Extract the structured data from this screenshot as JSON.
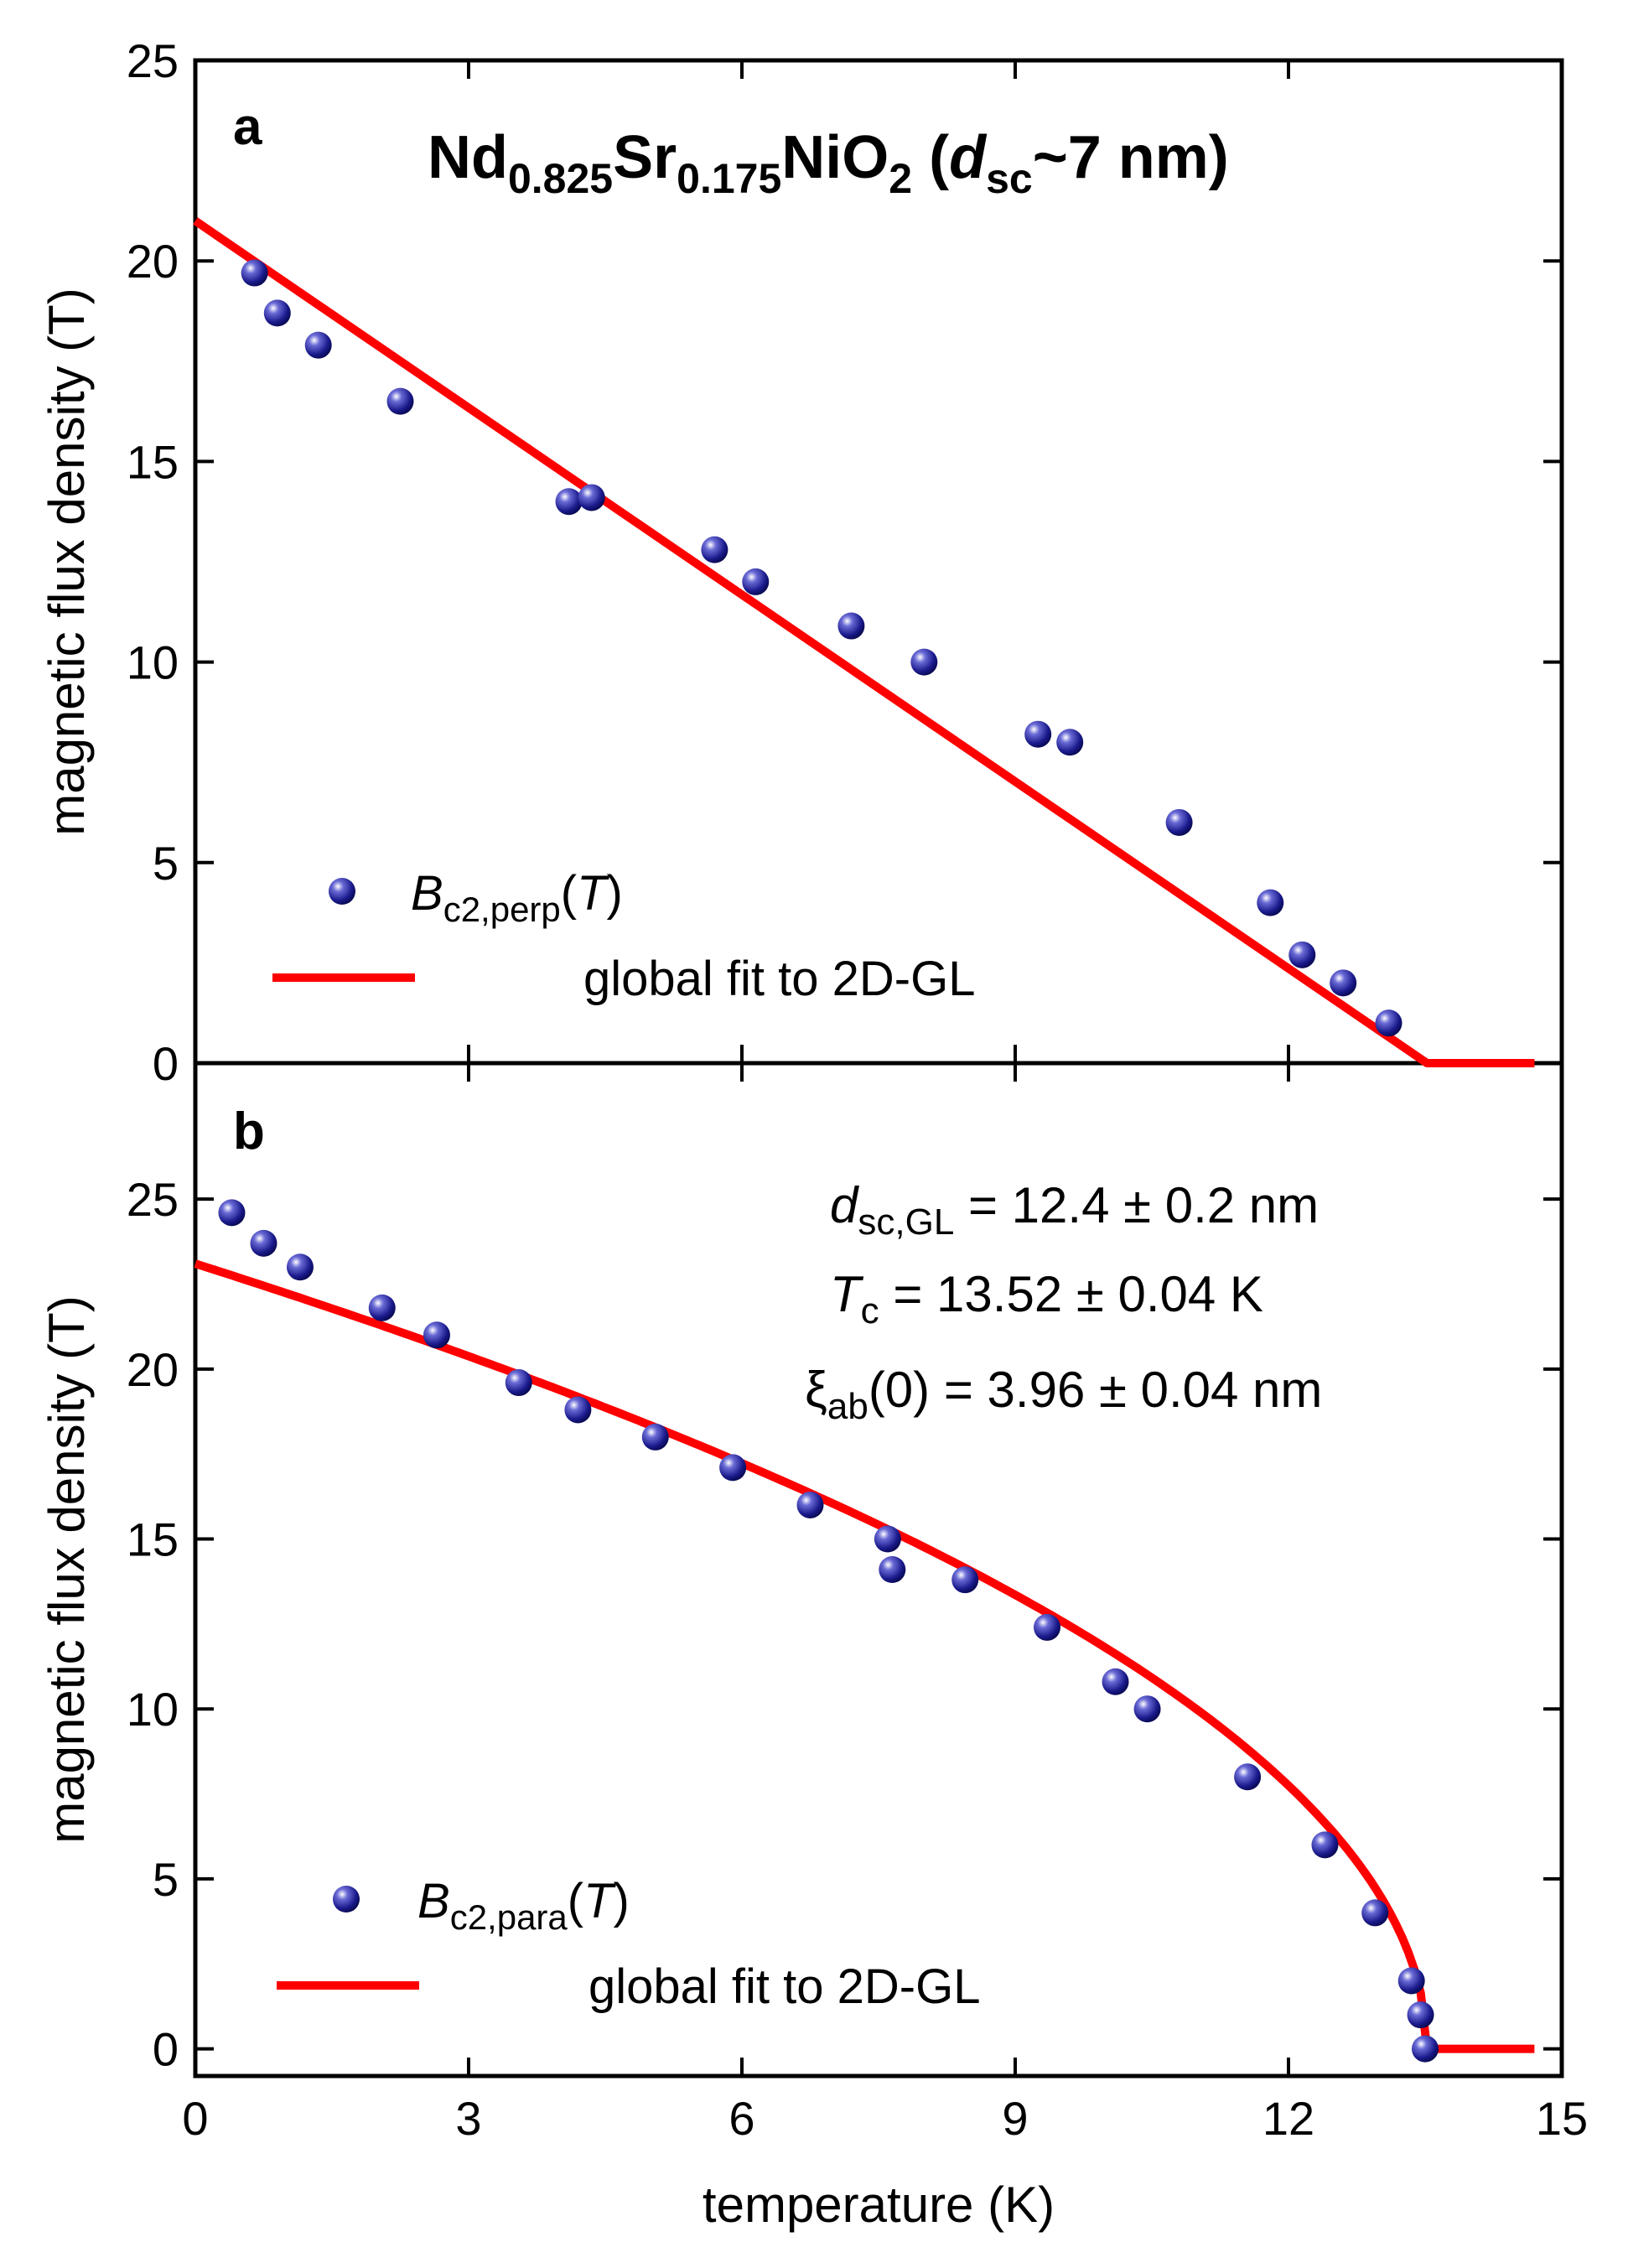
{
  "colors": {
    "series_marker": "#1a1a8c",
    "fit_line": "#ff0000",
    "axis": "#000000"
  },
  "xaxis": {
    "label": "temperature (K)",
    "range": [
      0,
      15
    ],
    "ticks": [
      0,
      3,
      6,
      9,
      12,
      15
    ],
    "tick_labels": [
      "0",
      "3",
      "6",
      "9",
      "12",
      "15"
    ]
  },
  "chart_data": [
    {
      "type": "scatter",
      "panel_letter": "a",
      "title": {
        "main": "Nd",
        "sub1": "0.825",
        "mid": "Sr",
        "sub2": "0.175",
        "mid2": "NiO",
        "sub3": "2",
        "paren_open": " (",
        "d": "d",
        "sub_sc": "sc",
        "tail": "~7 nm)"
      },
      "ylabel": "magnetic flux density (T)",
      "xlim": [
        0,
        15
      ],
      "ylim": [
        0,
        25
      ],
      "y_ticks": [
        0,
        5,
        10,
        15,
        20,
        25
      ],
      "y_tick_labels": [
        "0",
        "5",
        "10",
        "15",
        "20",
        "25"
      ],
      "series": [
        {
          "name": "Bc2,perp(T)",
          "legend": {
            "b": "B",
            "sub": "c2,perp",
            "open": "(",
            "t": "T",
            "close": ")"
          },
          "x": [
            0.65,
            0.9,
            1.35,
            2.25,
            4.1,
            4.35,
            5.7,
            6.15,
            7.2,
            8.0,
            9.25,
            9.6,
            10.8,
            11.8,
            12.15,
            12.6,
            13.1
          ],
          "y": [
            19.7,
            18.7,
            17.9,
            16.5,
            14.0,
            14.1,
            12.8,
            12.0,
            10.9,
            10.0,
            8.2,
            8.0,
            6.0,
            4.0,
            2.7,
            2.0,
            1.0
          ]
        }
      ],
      "fit": {
        "name": "global fit to 2D-GL",
        "x": [
          0,
          13.52,
          14.7
        ],
        "y": [
          21.0,
          0,
          0
        ]
      }
    },
    {
      "type": "scatter",
      "panel_letter": "b",
      "ylabel": "magnetic flux density (T)",
      "xlim": [
        0,
        15
      ],
      "ylim": [
        -0.8,
        29
      ],
      "y_ticks": [
        0,
        5,
        10,
        15,
        20,
        25
      ],
      "y_tick_labels": [
        "0",
        "5",
        "10",
        "15",
        "20",
        "25"
      ],
      "annotations": {
        "dsc": {
          "sym": "d",
          "sub": "sc,GL",
          "text": " = 12.4 ± 0.2 nm"
        },
        "tc": {
          "sym": "T",
          "sub": "c",
          "text": " = 13.52 ± 0.04 K"
        },
        "xi": {
          "sym": "ξ",
          "sub": "ab",
          "text": "(0) = 3.96 ± 0.04 nm"
        }
      },
      "series": [
        {
          "name": "Bc2,para(T)",
          "legend": {
            "b": "B",
            "sub": "c2,para",
            "open": "(",
            "t": "T",
            "close": ")"
          },
          "x": [
            0.4,
            0.75,
            1.15,
            2.05,
            2.65,
            3.55,
            4.2,
            5.05,
            5.9,
            6.75,
            7.6,
            7.65,
            8.45,
            9.35,
            10.1,
            10.45,
            11.55,
            12.4,
            12.95,
            13.35,
            13.45,
            13.5
          ],
          "y": [
            24.6,
            23.7,
            23.0,
            21.8,
            21.0,
            19.6,
            18.8,
            18.0,
            17.1,
            16.0,
            15.0,
            14.1,
            13.8,
            12.4,
            10.8,
            10.0,
            8.0,
            6.0,
            4.0,
            2.0,
            1.0,
            0.0
          ]
        }
      ],
      "fit": {
        "name": "global fit to 2D-GL",
        "tc": 13.52,
        "b0": 23.1,
        "x_end": 14.7
      }
    }
  ]
}
